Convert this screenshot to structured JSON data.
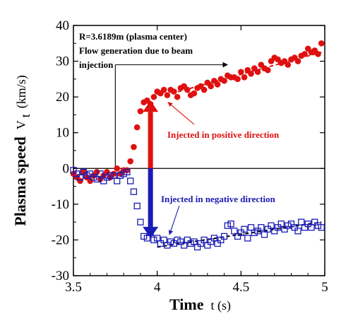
{
  "chart_data": {
    "type": "scatter",
    "xlabel": {
      "bold": "Time",
      "normal": "t (s)"
    },
    "ylabel": {
      "bold": "Plasma speed",
      "symbol": "V",
      "subscript": "t",
      "unit": "(km/s)"
    },
    "xlim": [
      3.5,
      5.0
    ],
    "ylim": [
      -30,
      40
    ],
    "xticks": [
      3.5,
      4,
      4.5,
      5
    ],
    "xtick_labels": [
      "3.5",
      "4",
      "4.5",
      "5"
    ],
    "yticks": [
      -30,
      -20,
      -10,
      0,
      10,
      20,
      30,
      40
    ],
    "ytick_labels": [
      "-30",
      "-20",
      "-10",
      "0",
      "10",
      "20",
      "30",
      "40"
    ],
    "grid": false,
    "annotations": {
      "note_line1": "R=3.6189m (plasma center)",
      "note_line2": "Flow generation due to beam",
      "note_line3": "injection",
      "positive_label": "Injected in positive direction",
      "negative_label": "Injected in negative direction"
    },
    "colors": {
      "positive": "#e01010",
      "negative": "#1a1ab4",
      "fit": "#000000"
    },
    "injection_time": 3.75,
    "bracket_level": 29,
    "series": [
      {
        "key": "positive",
        "marker": "circle",
        "points": [
          [
            3.5,
            -1.5
          ],
          [
            3.52,
            -2.5
          ],
          [
            3.54,
            -3.5
          ],
          [
            3.56,
            -1.0
          ],
          [
            3.58,
            -2.5
          ],
          [
            3.6,
            -3.5
          ],
          [
            3.62,
            -2.0
          ],
          [
            3.64,
            -1.0
          ],
          [
            3.66,
            -3.0
          ],
          [
            3.68,
            -2.0
          ],
          [
            3.7,
            -1.0
          ],
          [
            3.72,
            -2.5
          ],
          [
            3.74,
            -1.5
          ],
          [
            3.76,
            0.0
          ],
          [
            3.78,
            -1.5
          ],
          [
            3.8,
            -0.5
          ],
          [
            3.82,
            -0.5
          ],
          [
            3.84,
            2.0
          ],
          [
            3.86,
            6.0
          ],
          [
            3.88,
            11.5
          ],
          [
            3.9,
            16.0
          ],
          [
            3.92,
            18.5
          ],
          [
            3.94,
            19.0
          ],
          [
            3.96,
            18.0
          ],
          [
            3.98,
            20.0
          ],
          [
            4.0,
            21.5
          ],
          [
            4.02,
            21.0
          ],
          [
            4.04,
            22.0
          ],
          [
            4.06,
            20.5
          ],
          [
            4.08,
            22.0
          ],
          [
            4.1,
            21.5
          ],
          [
            4.12,
            20.0
          ],
          [
            4.14,
            22.5
          ],
          [
            4.16,
            23.0
          ],
          [
            4.18,
            22.0
          ],
          [
            4.2,
            20.5
          ],
          [
            4.22,
            21.0
          ],
          [
            4.24,
            22.5
          ],
          [
            4.26,
            23.0
          ],
          [
            4.28,
            22.0
          ],
          [
            4.3,
            24.0
          ],
          [
            4.32,
            23.0
          ],
          [
            4.34,
            24.5
          ],
          [
            4.36,
            23.5
          ],
          [
            4.38,
            25.0
          ],
          [
            4.4,
            24.5
          ],
          [
            4.42,
            26.0
          ],
          [
            4.44,
            25.5
          ],
          [
            4.46,
            25.5
          ],
          [
            4.48,
            25.0
          ],
          [
            4.5,
            27.0
          ],
          [
            4.52,
            25.5
          ],
          [
            4.54,
            27.5
          ],
          [
            4.56,
            26.5
          ],
          [
            4.58,
            28.0
          ],
          [
            4.6,
            27.0
          ],
          [
            4.62,
            29.0
          ],
          [
            4.64,
            28.0
          ],
          [
            4.66,
            27.5
          ],
          [
            4.68,
            30.0
          ],
          [
            4.7,
            31.0
          ],
          [
            4.72,
            30.5
          ],
          [
            4.74,
            29.5
          ],
          [
            4.76,
            30.0
          ],
          [
            4.78,
            29.0
          ],
          [
            4.8,
            30.5
          ],
          [
            4.82,
            31.0
          ],
          [
            4.84,
            30.0
          ],
          [
            4.86,
            31.5
          ],
          [
            4.88,
            32.0
          ],
          [
            4.9,
            33.5
          ],
          [
            4.92,
            32.5
          ],
          [
            4.94,
            33.0
          ],
          [
            4.96,
            32.0
          ],
          [
            4.98,
            35.0
          ]
        ]
      },
      {
        "key": "negative",
        "marker": "square",
        "points": [
          [
            3.5,
            -0.5
          ],
          [
            3.52,
            -1.5
          ],
          [
            3.54,
            -2.5
          ],
          [
            3.56,
            -1.0
          ],
          [
            3.58,
            -2.0
          ],
          [
            3.6,
            -1.5
          ],
          [
            3.62,
            -2.5
          ],
          [
            3.64,
            -3.0
          ],
          [
            3.66,
            -1.5
          ],
          [
            3.68,
            -3.5
          ],
          [
            3.7,
            -2.5
          ],
          [
            3.72,
            -2.0
          ],
          [
            3.74,
            -2.0
          ],
          [
            3.76,
            -3.5
          ],
          [
            3.78,
            -2.0
          ],
          [
            3.8,
            -1.5
          ],
          [
            3.82,
            -1.0
          ],
          [
            3.84,
            -3.5
          ],
          [
            3.86,
            -6.5
          ],
          [
            3.88,
            -10.5
          ],
          [
            3.9,
            -15.0
          ],
          [
            3.92,
            -19.0
          ],
          [
            3.94,
            -19.5
          ],
          [
            3.96,
            -18.0
          ],
          [
            3.98,
            -20.0
          ],
          [
            4.0,
            -19.5
          ],
          [
            4.02,
            -21.0
          ],
          [
            4.04,
            -20.0
          ],
          [
            4.06,
            -21.5
          ],
          [
            4.08,
            -20.5
          ],
          [
            4.1,
            -21.0
          ],
          [
            4.12,
            -20.0
          ],
          [
            4.14,
            -20.5
          ],
          [
            4.16,
            -21.5
          ],
          [
            4.18,
            -20.0
          ],
          [
            4.2,
            -21.0
          ],
          [
            4.22,
            -20.5
          ],
          [
            4.24,
            -22.0
          ],
          [
            4.26,
            -21.0
          ],
          [
            4.28,
            -20.0
          ],
          [
            4.3,
            -21.5
          ],
          [
            4.32,
            -20.5
          ],
          [
            4.34,
            -19.5
          ],
          [
            4.36,
            -21.0
          ],
          [
            4.38,
            -20.0
          ],
          [
            4.4,
            -19.0
          ],
          [
            4.42,
            -16.0
          ],
          [
            4.44,
            -15.5
          ],
          [
            4.46,
            -17.5
          ],
          [
            4.48,
            -19.0
          ],
          [
            4.5,
            -18.0
          ],
          [
            4.52,
            -17.0
          ],
          [
            4.54,
            -19.5
          ],
          [
            4.56,
            -16.5
          ],
          [
            4.58,
            -18.0
          ],
          [
            4.6,
            -17.5
          ],
          [
            4.62,
            -16.5
          ],
          [
            4.64,
            -18.5
          ],
          [
            4.66,
            -17.0
          ],
          [
            4.68,
            -16.0
          ],
          [
            4.7,
            -17.5
          ],
          [
            4.72,
            -16.5
          ],
          [
            4.74,
            -15.5
          ],
          [
            4.76,
            -17.0
          ],
          [
            4.78,
            -16.0
          ],
          [
            4.8,
            -15.5
          ],
          [
            4.82,
            -16.5
          ],
          [
            4.84,
            -17.5
          ],
          [
            4.86,
            -15.0
          ],
          [
            4.88,
            -16.5
          ],
          [
            4.9,
            -15.5
          ],
          [
            4.92,
            -16.5
          ],
          [
            4.94,
            -15.0
          ],
          [
            4.96,
            -16.0
          ],
          [
            4.98,
            -16.5
          ]
        ]
      }
    ],
    "fits": [
      {
        "key": "positive",
        "x": [
          4.05,
          4.98
        ],
        "y": [
          20.5,
          32.5
        ]
      },
      {
        "key": "negative",
        "x": [
          4.0,
          4.98
        ],
        "y": [
          -22.0,
          -15.0
        ]
      }
    ],
    "arrows": [
      {
        "key": "positive",
        "from": [
          3.96,
          0
        ],
        "to": [
          3.96,
          19
        ]
      },
      {
        "key": "negative",
        "from": [
          3.96,
          0
        ],
        "to": [
          3.96,
          -19.5
        ]
      }
    ]
  }
}
